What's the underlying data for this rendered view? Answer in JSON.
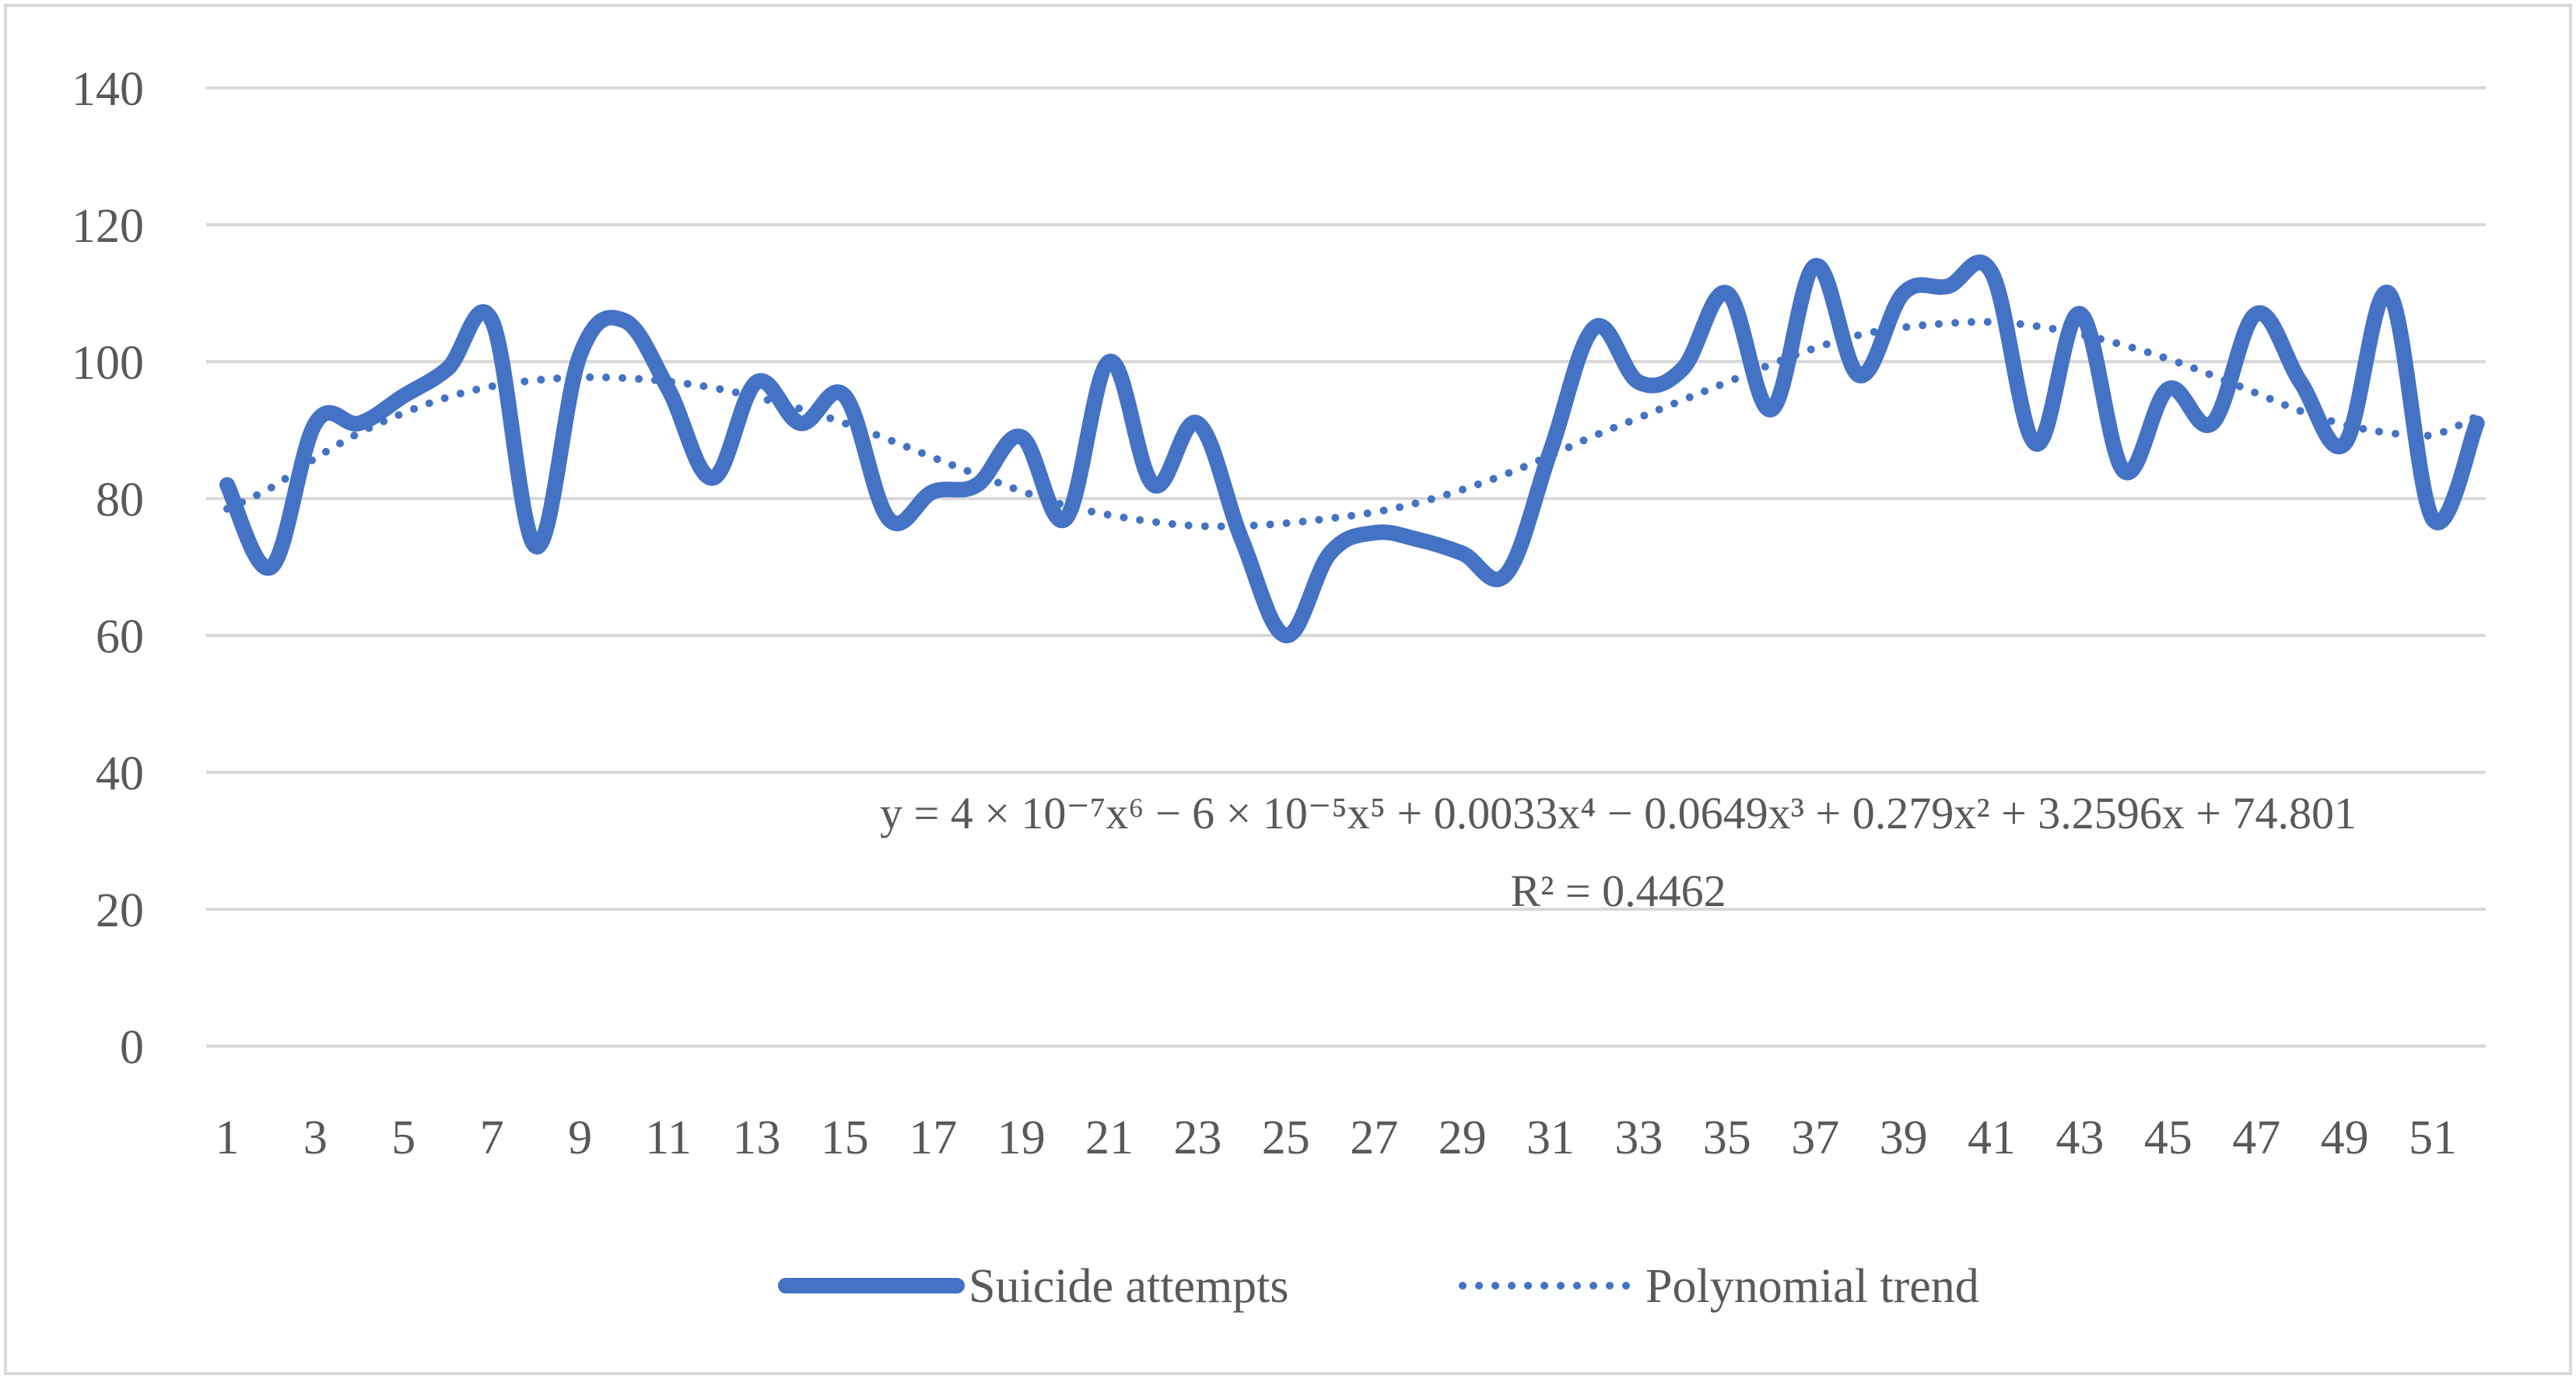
{
  "colors": {
    "series": "#4472C4",
    "grid": "#D9D9D9",
    "text": "#595959",
    "border": "#D9D9D9"
  },
  "trendline": {
    "equation": "y = 4 × 10⁻⁷x⁶ − 6 × 10⁻⁵x⁵ + 0.0033x⁴ − 0.0649x³ + 0.279x² + 3.2596x + 74.801",
    "r_squared": "R² = 0.4462",
    "coefficients": [
      4e-07,
      -6e-05,
      0.0033,
      -0.0649,
      0.279,
      3.2596,
      74.801
    ]
  },
  "chart_data": {
    "type": "line",
    "title": "",
    "xlabel": "",
    "ylabel": "",
    "ylim": [
      0,
      140
    ],
    "y_ticks": [
      "0",
      "20",
      "40",
      "60",
      "80",
      "100",
      "120",
      "140"
    ],
    "x": [
      1,
      2,
      3,
      4,
      5,
      6,
      7,
      8,
      9,
      10,
      11,
      12,
      13,
      14,
      15,
      16,
      17,
      18,
      19,
      20,
      21,
      22,
      23,
      24,
      25,
      26,
      27,
      28,
      29,
      30,
      31,
      32,
      33,
      34,
      35,
      36,
      37,
      38,
      39,
      40,
      41,
      42,
      43,
      44,
      45,
      46,
      47,
      48,
      49,
      50,
      51,
      52
    ],
    "x_tick_labels": [
      "1",
      "3",
      "5",
      "7",
      "9",
      "11",
      "13",
      "15",
      "17",
      "19",
      "21",
      "23",
      "25",
      "27",
      "29",
      "31",
      "33",
      "35",
      "37",
      "39",
      "41",
      "43",
      "45",
      "47",
      "49",
      "51"
    ],
    "legend_position": "bottom",
    "series": [
      {
        "name": "Suicide attempts",
        "style": "solid",
        "values": [
          82,
          70,
          91,
          91,
          95,
          99,
          106,
          73,
          101,
          106,
          96,
          83,
          97,
          91,
          95,
          77,
          81,
          82,
          89,
          77,
          100,
          82,
          91,
          74,
          60,
          72,
          75,
          74,
          72,
          69,
          87,
          105,
          97,
          99,
          110,
          93,
          114,
          98,
          110,
          111,
          113,
          88,
          107,
          84,
          96,
          91,
          107,
          97,
          88,
          110,
          77,
          91
        ]
      },
      {
        "name": "Polynomial trend",
        "style": "dotted",
        "values": [
          78.5,
          81.6,
          85.9,
          89.6,
          92.5,
          94.8,
          96.4,
          97.3,
          97.7,
          97.6,
          97.1,
          96.2,
          94.8,
          93.1,
          91.0,
          88.6,
          86.0,
          83.5,
          81.1,
          79.0,
          77.6,
          76.6,
          76.0,
          76.0,
          76.4,
          77.1,
          78.0,
          79.4,
          81.3,
          83.6,
          86.3,
          89.2,
          91.8,
          94.4,
          97.0,
          99.6,
          102.0,
          103.9,
          105.0,
          105.6,
          105.8,
          105.2,
          104.0,
          102.4,
          100.4,
          98.0,
          95.4,
          92.8,
          90.8,
          89.6,
          89.3,
          92.0
        ]
      }
    ]
  }
}
